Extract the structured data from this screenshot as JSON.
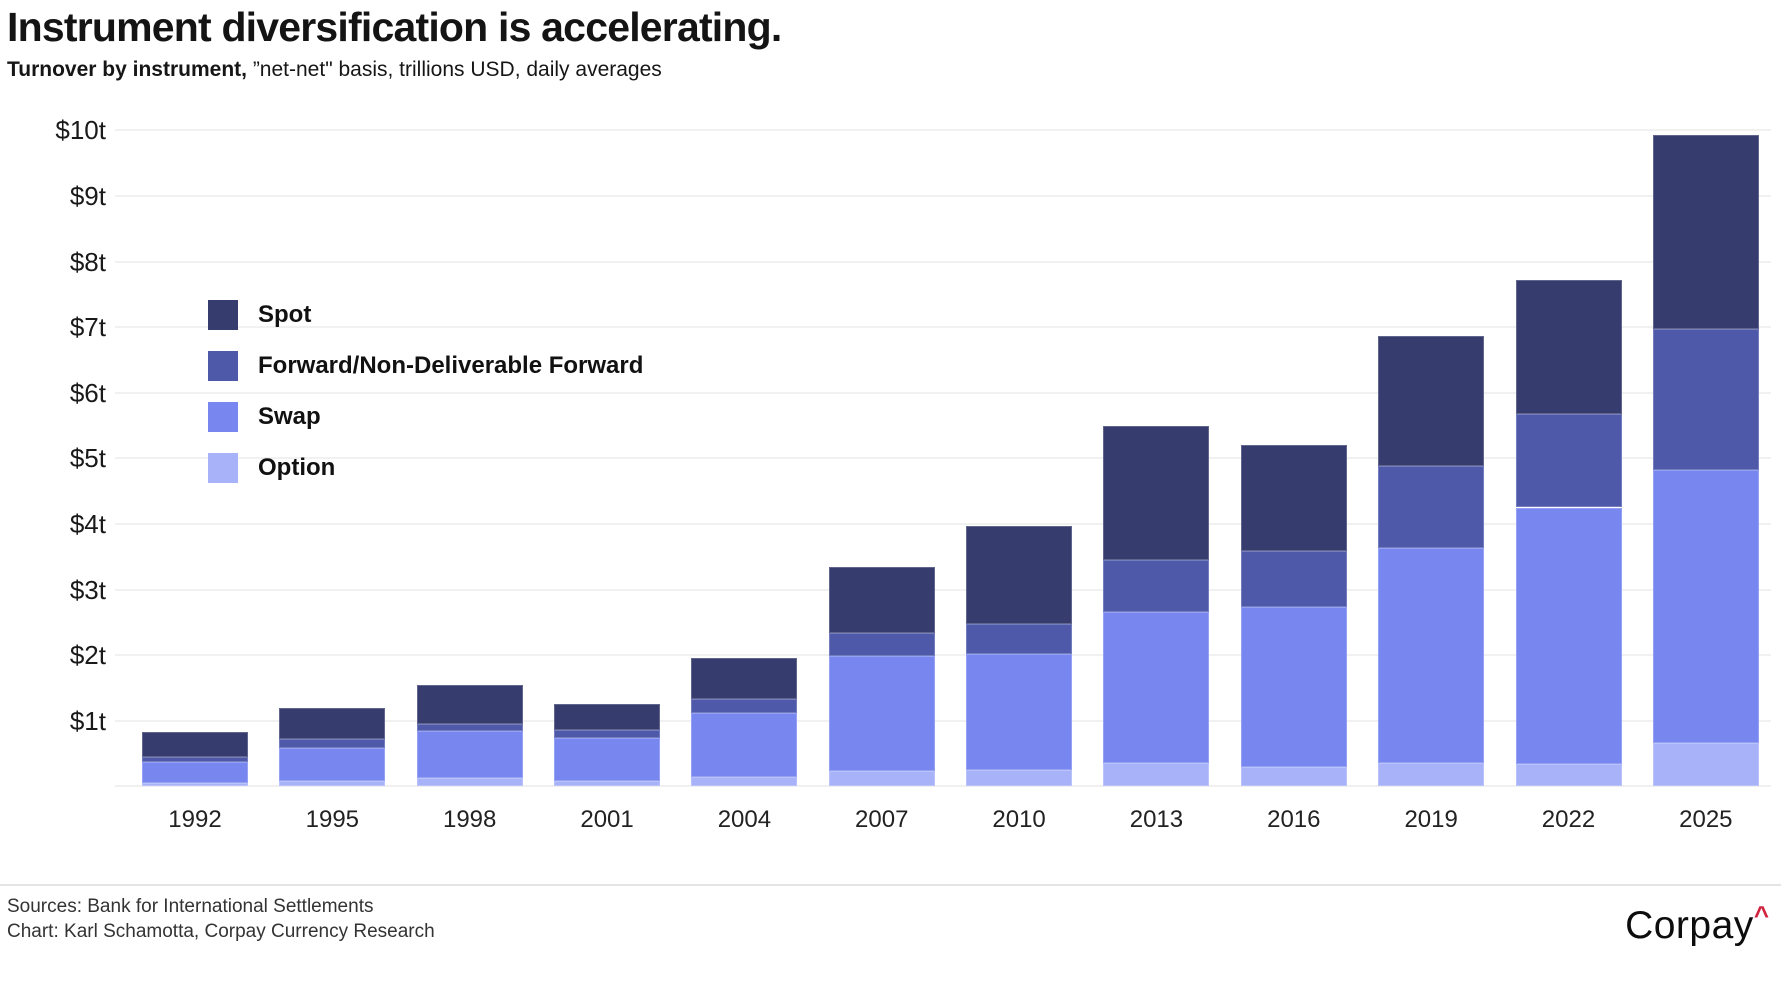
{
  "title": "Instrument diversification is accelerating.",
  "subtitle": {
    "bold": "Turnover by instrument,",
    "rest": " ”net-net\" basis, trillions USD, daily averages"
  },
  "footer": {
    "sources_line": "Sources: Bank for International Settlements",
    "chart_line": "Chart: Karl Schamotta, Corpay Currency Research"
  },
  "logo": {
    "text": "Corpay",
    "caret": "^",
    "caret_color": "#d0233f"
  },
  "chart_data": {
    "type": "bar",
    "stacked": true,
    "title": "Instrument diversification is accelerating.",
    "subtitle": "Turnover by instrument, ”net-net\" basis, trillions USD, daily averages",
    "unit": "trillions USD, daily averages",
    "categories": [
      "1992",
      "1995",
      "1998",
      "2001",
      "2004",
      "2007",
      "2010",
      "2013",
      "2016",
      "2019",
      "2022",
      "2025"
    ],
    "series": [
      {
        "name": "Spot",
        "color": "#363c6d",
        "values": [
          0.39,
          0.47,
          0.59,
          0.4,
          0.62,
          1.0,
          1.49,
          2.04,
          1.62,
          1.98,
          2.05,
          2.96
        ]
      },
      {
        "name": "Forward/Non-Deliverable Forward",
        "color": "#4e5aa9",
        "values": [
          0.07,
          0.13,
          0.1,
          0.13,
          0.22,
          0.36,
          0.46,
          0.8,
          0.84,
          1.25,
          1.42,
          2.15
        ]
      },
      {
        "name": "Swap",
        "color": "#7887ef",
        "values": [
          0.32,
          0.51,
          0.72,
          0.65,
          0.97,
          1.74,
          1.77,
          2.3,
          2.45,
          3.27,
          3.91,
          4.16
        ]
      },
      {
        "name": "Option",
        "color": "#a7b2f8",
        "values": [
          0.05,
          0.08,
          0.13,
          0.08,
          0.14,
          0.24,
          0.25,
          0.35,
          0.29,
          0.36,
          0.34,
          0.66
        ]
      }
    ],
    "totals": [
      0.83,
      1.19,
      1.54,
      1.26,
      1.95,
      3.34,
      3.97,
      5.49,
      5.2,
      6.86,
      7.72,
      9.93
    ],
    "stack_order_bottom_to_top": [
      "Option",
      "Swap",
      "Forward/Non-Deliverable Forward",
      "Spot"
    ],
    "yticks": [
      "$1t",
      "$2t",
      "$3t",
      "$4t",
      "$5t",
      "$6t",
      "$7t",
      "$8t",
      "$9t",
      "$10t"
    ],
    "ylim": [
      0,
      10
    ],
    "xlabel": "",
    "ylabel": "",
    "grid": "horizontal",
    "legend_position": "upper-left-inside"
  }
}
